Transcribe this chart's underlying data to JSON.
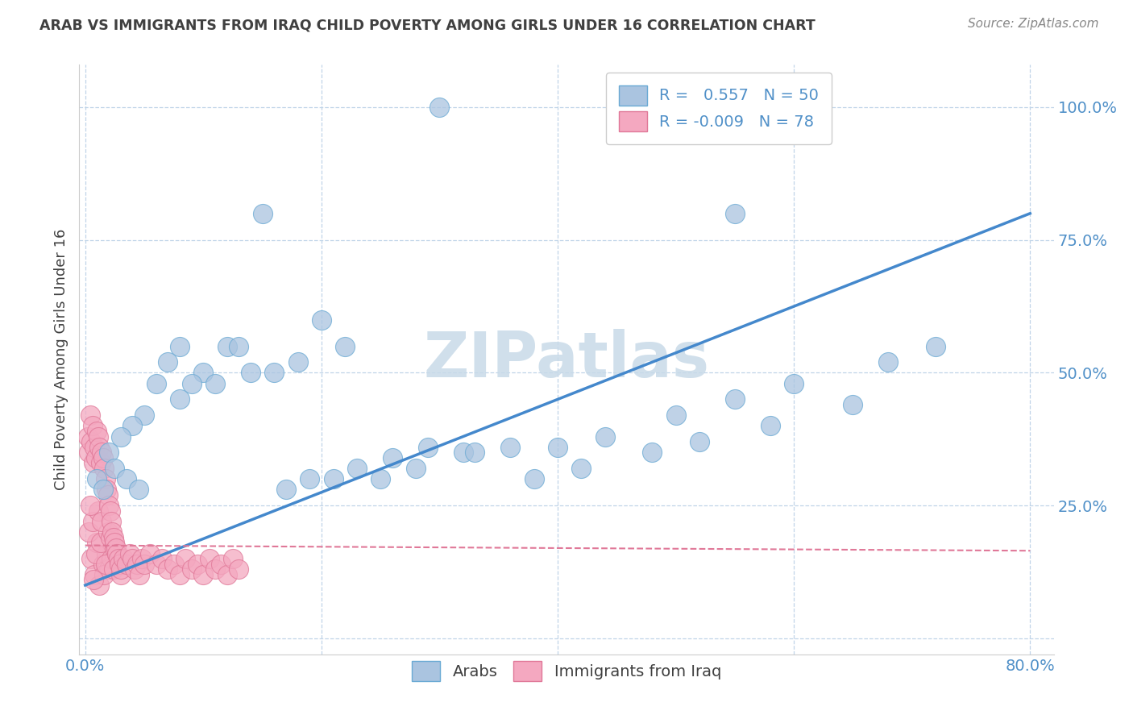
{
  "title": "ARAB VS IMMIGRANTS FROM IRAQ CHILD POVERTY AMONG GIRLS UNDER 16 CORRELATION CHART",
  "source": "Source: ZipAtlas.com",
  "ylabel": "Child Poverty Among Girls Under 16",
  "watermark": "ZIPatlas",
  "legend_label1": "Arabs",
  "legend_label2": "Immigrants from Iraq",
  "R1": 0.557,
  "N1": 50,
  "R2": -0.009,
  "N2": 78,
  "blue_scatter_color": "#aac4e0",
  "blue_edge_color": "#6aaad4",
  "pink_scatter_color": "#f4a8c0",
  "pink_edge_color": "#e07898",
  "line_blue": "#4488cc",
  "line_pink": "#e07898",
  "arab_x": [
    0.3,
    0.15,
    0.55,
    0.08,
    0.12,
    0.2,
    0.22,
    0.16,
    0.18,
    0.1,
    0.13,
    0.07,
    0.14,
    0.09,
    0.11,
    0.06,
    0.08,
    0.05,
    0.04,
    0.03,
    0.02,
    0.01,
    0.015,
    0.025,
    0.035,
    0.045,
    0.25,
    0.28,
    0.32,
    0.38,
    0.42,
    0.48,
    0.52,
    0.58,
    0.65,
    0.17,
    0.19,
    0.21,
    0.23,
    0.26,
    0.29,
    0.33,
    0.36,
    0.4,
    0.44,
    0.5,
    0.55,
    0.6,
    0.68,
    0.72
  ],
  "arab_y": [
    1.0,
    0.8,
    0.8,
    0.55,
    0.55,
    0.6,
    0.55,
    0.5,
    0.52,
    0.5,
    0.55,
    0.52,
    0.5,
    0.48,
    0.48,
    0.48,
    0.45,
    0.42,
    0.4,
    0.38,
    0.35,
    0.3,
    0.28,
    0.32,
    0.3,
    0.28,
    0.3,
    0.32,
    0.35,
    0.3,
    0.32,
    0.35,
    0.37,
    0.4,
    0.44,
    0.28,
    0.3,
    0.3,
    0.32,
    0.34,
    0.36,
    0.35,
    0.36,
    0.36,
    0.38,
    0.42,
    0.45,
    0.48,
    0.52,
    0.55
  ],
  "iraq_x": [
    0.005,
    0.008,
    0.01,
    0.012,
    0.015,
    0.018,
    0.02,
    0.003,
    0.006,
    0.009,
    0.011,
    0.013,
    0.016,
    0.019,
    0.022,
    0.025,
    0.007,
    0.014,
    0.017,
    0.021,
    0.024,
    0.027,
    0.03,
    0.004,
    0.002,
    0.003,
    0.004,
    0.005,
    0.006,
    0.007,
    0.008,
    0.009,
    0.01,
    0.011,
    0.012,
    0.013,
    0.014,
    0.015,
    0.016,
    0.017,
    0.018,
    0.019,
    0.02,
    0.021,
    0.022,
    0.023,
    0.024,
    0.025,
    0.026,
    0.027,
    0.028,
    0.029,
    0.03,
    0.032,
    0.035,
    0.038,
    0.04,
    0.042,
    0.044,
    0.046,
    0.048,
    0.05,
    0.055,
    0.06,
    0.065,
    0.07,
    0.075,
    0.08,
    0.085,
    0.09,
    0.095,
    0.1,
    0.105,
    0.11,
    0.115,
    0.12,
    0.125,
    0.13
  ],
  "iraq_y": [
    0.15,
    0.12,
    0.18,
    0.1,
    0.14,
    0.16,
    0.13,
    0.2,
    0.22,
    0.16,
    0.24,
    0.18,
    0.12,
    0.2,
    0.15,
    0.17,
    0.11,
    0.22,
    0.14,
    0.19,
    0.13,
    0.16,
    0.12,
    0.25,
    0.38,
    0.35,
    0.42,
    0.37,
    0.4,
    0.33,
    0.36,
    0.34,
    0.39,
    0.38,
    0.36,
    0.33,
    0.35,
    0.34,
    0.32,
    0.3,
    0.28,
    0.27,
    0.25,
    0.24,
    0.22,
    0.2,
    0.19,
    0.18,
    0.17,
    0.16,
    0.15,
    0.14,
    0.13,
    0.15,
    0.14,
    0.16,
    0.15,
    0.13,
    0.14,
    0.12,
    0.15,
    0.14,
    0.16,
    0.14,
    0.15,
    0.13,
    0.14,
    0.12,
    0.15,
    0.13,
    0.14,
    0.12,
    0.15,
    0.13,
    0.14,
    0.12,
    0.15,
    0.13
  ],
  "blue_line_x": [
    0.0,
    0.8
  ],
  "blue_line_y": [
    0.1,
    0.8
  ],
  "pink_line_x": [
    0.0,
    0.8
  ],
  "pink_line_y": [
    0.175,
    0.165
  ],
  "ytick_positions": [
    0.0,
    0.25,
    0.5,
    0.75,
    1.0
  ],
  "ytick_labels_right": [
    "",
    "25.0%",
    "50.0%",
    "75.0%",
    "100.0%"
  ],
  "xtick_positions": [
    0.0,
    0.2,
    0.4,
    0.6,
    0.8
  ],
  "xtick_labels": [
    "0.0%",
    "",
    "",
    "",
    "80.0%"
  ],
  "background_color": "#ffffff",
  "grid_color": "#c0d4e8",
  "title_color": "#404040",
  "axis_tick_color": "#5090c8",
  "watermark_color": "#c8dae8"
}
